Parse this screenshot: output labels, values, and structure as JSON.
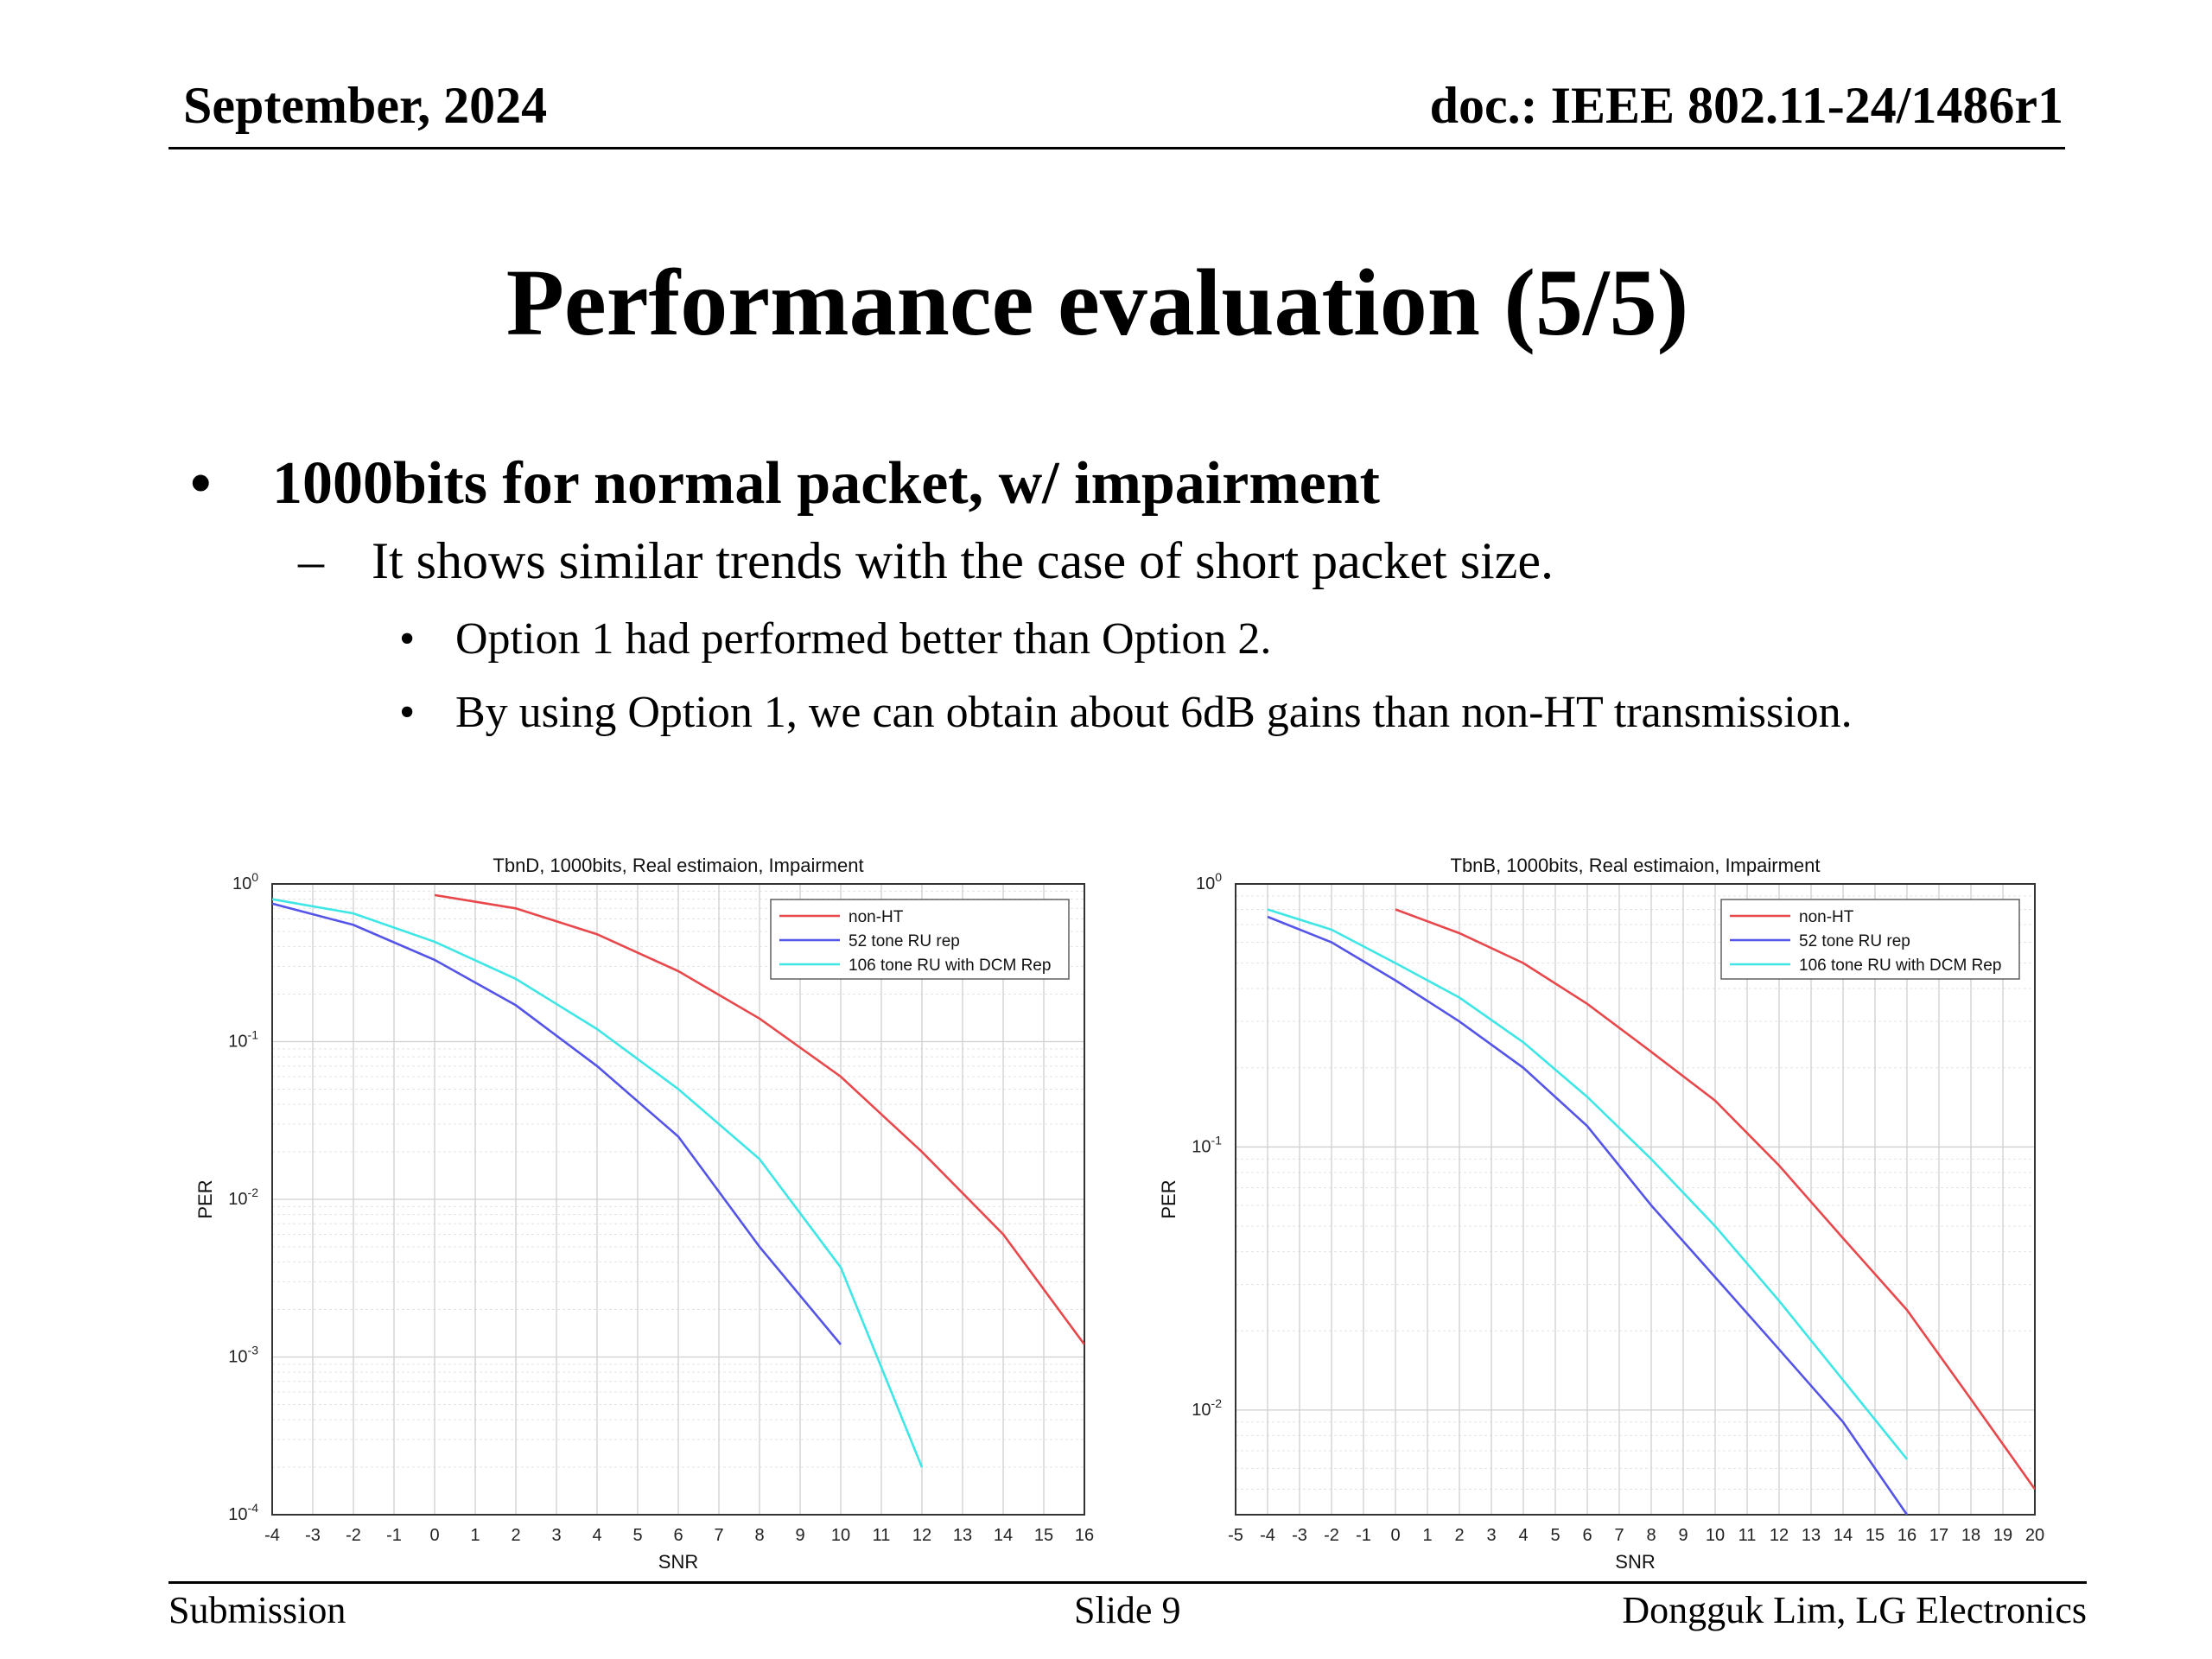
{
  "header": {
    "date": "September, 2024",
    "doc": "doc.: IEEE 802.11-24/1486r1"
  },
  "slide_title": "Performance evaluation (5/5)",
  "content": {
    "bullet1": "1000bits for normal packet, w/ impairment",
    "sub1": "It shows similar trends with the case of short packet size.",
    "sub_bullets": [
      "Option 1 had performed better than Option 2.",
      "By using Option 1, we can obtain about 6dB gains than non-HT transmission."
    ]
  },
  "footer": {
    "left": "Submission",
    "center": "Slide 9",
    "right": "Dongguk Lim, LG Electronics"
  },
  "chart_data": [
    {
      "type": "line",
      "title": "TbnD, 1000bits, Real estimaion, Impairment",
      "xlabel": "SNR",
      "ylabel": "PER",
      "xlim": [
        -4,
        16
      ],
      "ylim": [
        0.0001,
        1
      ],
      "yscale": "log",
      "y_tick_exponents": [
        0,
        -1,
        -2,
        -3,
        -4
      ],
      "grid": true,
      "legend_position": "top-right",
      "series": [
        {
          "name": "non-HT",
          "color": "#e8484b",
          "x": [
            0,
            2,
            4,
            6,
            8,
            10,
            12,
            14,
            16
          ],
          "y": [
            0.85,
            0.7,
            0.48,
            0.28,
            0.14,
            0.06,
            0.02,
            0.006,
            0.0012
          ]
        },
        {
          "name": "52 tone RU rep",
          "color": "#5454e8",
          "x": [
            -4,
            -2,
            0,
            2,
            4,
            6,
            8,
            10
          ],
          "y": [
            0.75,
            0.55,
            0.33,
            0.17,
            0.07,
            0.025,
            0.005,
            0.0012
          ]
        },
        {
          "name": "106 tone RU with DCM Rep",
          "color": "#3fe6e6",
          "x": [
            -4,
            -2,
            0,
            2,
            4,
            6,
            8,
            10,
            12
          ],
          "y": [
            0.8,
            0.65,
            0.43,
            0.25,
            0.12,
            0.05,
            0.018,
            0.0037,
            0.0002
          ]
        }
      ]
    },
    {
      "type": "line",
      "title": "TbnB, 1000bits, Real estimaion, Impairment",
      "xlabel": "SNR",
      "ylabel": "PER",
      "xlim": [
        -5,
        20
      ],
      "ylim": [
        0.004,
        1
      ],
      "yscale": "log",
      "y_tick_exponents": [
        0,
        -1,
        -2
      ],
      "grid": true,
      "legend_position": "top-right",
      "series": [
        {
          "name": "non-HT",
          "color": "#e8484b",
          "x": [
            0,
            2,
            4,
            6,
            8,
            10,
            12,
            14,
            16,
            18,
            20
          ],
          "y": [
            0.8,
            0.65,
            0.5,
            0.35,
            0.23,
            0.15,
            0.085,
            0.045,
            0.024,
            0.011,
            0.005
          ]
        },
        {
          "name": "52 tone RU rep",
          "color": "#5454e8",
          "x": [
            -4,
            -2,
            0,
            2,
            4,
            6,
            8,
            10,
            12,
            14,
            16
          ],
          "y": [
            0.75,
            0.6,
            0.43,
            0.3,
            0.2,
            0.12,
            0.06,
            0.032,
            0.017,
            0.009,
            0.004
          ]
        },
        {
          "name": "106 tone RU with DCM Rep",
          "color": "#3fe6e6",
          "x": [
            -4,
            -2,
            0,
            2,
            4,
            6,
            8,
            10,
            12,
            14,
            16
          ],
          "y": [
            0.8,
            0.67,
            0.5,
            0.37,
            0.25,
            0.155,
            0.09,
            0.05,
            0.026,
            0.013,
            0.0065
          ]
        }
      ]
    }
  ]
}
